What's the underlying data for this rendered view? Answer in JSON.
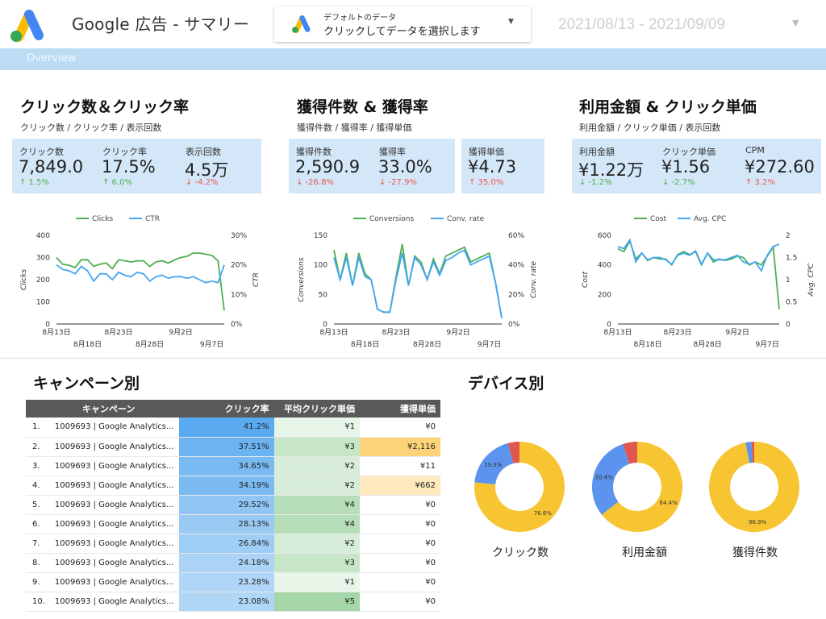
{
  "header": {
    "title": "Google 広告 - サマリー",
    "selector_line1": "デフォルトのデータ",
    "selector_line2": "クリックしてデータを選択します",
    "date_range": "2021/08/13 - 2021/09/09"
  },
  "tab": {
    "label": "Overview"
  },
  "colors": {
    "green": "#4caf50",
    "blue": "#42a5f5",
    "yellow": "#f7c531",
    "red": "#e0574f",
    "kpi_bg": "#d4e7f8"
  },
  "sections": [
    {
      "title": "クリック数＆クリック率",
      "subtitle": "クリック数 / クリック率 / 表示回数",
      "kpis": [
        {
          "label": "クリック数",
          "value": "7,849.0",
          "change": "↑ 1.5%"
        },
        {
          "label": "クリック率",
          "value": "17.5%",
          "change": "↑ 6.0%"
        },
        {
          "label": "表示回数",
          "value": "4.5万",
          "change": "↓ -4.2%"
        }
      ]
    },
    {
      "title": "獲得件数 & 獲得率",
      "subtitle": "獲得件数 / 獲得率 / 獲得単価",
      "kpis": [
        {
          "label": "獲得件数",
          "value": "2,590.9",
          "change": "↓ -26.8%"
        },
        {
          "label": "獲得率",
          "value": "33.0%",
          "change": "↓ -27.9%"
        },
        {
          "label": "獲得単価",
          "value": "¥4.73",
          "change": "↑ 35.0%"
        }
      ]
    },
    {
      "title": "利用金額 & クリック単価",
      "subtitle": "利用金額 / クリック単価 / 表示回数",
      "kpis": [
        {
          "label": "利用金額",
          "value": "¥1.22万",
          "change": "↓ -1.2%"
        },
        {
          "label": "クリック単価",
          "value": "¥1.56",
          "change": "↓ -2.7%"
        },
        {
          "label": "CPM",
          "value": "¥272.60",
          "change": "↑ 3.2%"
        }
      ]
    }
  ],
  "chart_data": [
    {
      "type": "line",
      "series": [
        {
          "name": "Clicks",
          "axis": "left",
          "values": [
            300,
            270,
            265,
            255,
            290,
            290,
            260,
            270,
            275,
            250,
            290,
            285,
            280,
            285,
            285,
            260,
            280,
            285,
            275,
            290,
            300,
            305,
            320,
            320,
            315,
            310,
            285,
            60
          ]
        },
        {
          "name": "CTR",
          "axis": "right",
          "values": [
            20,
            18.5,
            18,
            17,
            19.5,
            18,
            14.5,
            17,
            17,
            15,
            17.5,
            16.5,
            16,
            17.5,
            17,
            14.5,
            16,
            16.5,
            15.5,
            16,
            16,
            15.5,
            16,
            15,
            14,
            14.5,
            14,
            20
          ]
        }
      ],
      "x_tick_labels_row1": [
        "8月13日",
        "8月23日",
        "9月2日"
      ],
      "x_tick_labels_row2": [
        "8月18日",
        "8月28日",
        "9月7日"
      ],
      "ylabel_left": "Clicks",
      "ylabel_right": "CTR",
      "y_left_ticks": [
        "0",
        "100",
        "200",
        "300",
        "400"
      ],
      "y_right_ticks": [
        "0%",
        "10%",
        "20%",
        "30%"
      ],
      "ylim_left": [
        0,
        400
      ],
      "ylim_right": [
        0,
        30
      ]
    },
    {
      "type": "line",
      "series": [
        {
          "name": "Conversions",
          "axis": "left",
          "values": [
            125,
            75,
            120,
            65,
            120,
            85,
            75,
            25,
            20,
            20,
            80,
            135,
            65,
            115,
            105,
            75,
            110,
            85,
            115,
            120,
            125,
            130,
            105,
            110,
            115,
            120,
            70,
            10
          ]
        },
        {
          "name": "Conv. rate",
          "axis": "right",
          "values": [
            45,
            30,
            45,
            26,
            45,
            32,
            30,
            10,
            8,
            8,
            30,
            48,
            26,
            45,
            40,
            30,
            42,
            33,
            43,
            45,
            48,
            50,
            40,
            42,
            44,
            46,
            28,
            4
          ]
        }
      ],
      "x_tick_labels_row1": [
        "8月13日",
        "8月23日",
        "9月2日"
      ],
      "x_tick_labels_row2": [
        "8月18日",
        "8月28日",
        "9月7日"
      ],
      "ylabel_left": "Conversions",
      "ylabel_right": "Conv. rate",
      "y_left_ticks": [
        "0",
        "50",
        "100",
        "150"
      ],
      "y_right_ticks": [
        "0%",
        "20%",
        "40%",
        "60%"
      ],
      "ylim_left": [
        0,
        150
      ],
      "ylim_right": [
        0,
        60
      ]
    },
    {
      "type": "line",
      "series": [
        {
          "name": "Cost",
          "axis": "left",
          "values": [
            510,
            490,
            560,
            440,
            480,
            430,
            450,
            440,
            440,
            400,
            470,
            490,
            470,
            490,
            400,
            480,
            420,
            440,
            430,
            440,
            460,
            450,
            400,
            420,
            400,
            460,
            520,
            100
          ]
        },
        {
          "name": "Avg. CPC",
          "axis": "right",
          "values": [
            1.75,
            1.7,
            1.9,
            1.4,
            1.6,
            1.45,
            1.5,
            1.5,
            1.45,
            1.35,
            1.55,
            1.6,
            1.55,
            1.65,
            1.35,
            1.6,
            1.45,
            1.45,
            1.45,
            1.5,
            1.55,
            1.4,
            1.35,
            1.4,
            1.2,
            1.55,
            1.75,
            1.8
          ]
        }
      ],
      "x_tick_labels_row1": [
        "8月13日",
        "8月23日",
        "9月2日"
      ],
      "x_tick_labels_row2": [
        "8月18日",
        "8月28日",
        "9月7日"
      ],
      "ylabel_left": "Cost",
      "ylabel_right": "Avg. CPC",
      "y_left_ticks": [
        "0",
        "200",
        "400",
        "600"
      ],
      "y_right_ticks": [
        "0",
        "0.5",
        "1",
        "1.5",
        "2"
      ],
      "ylim_left": [
        0,
        600
      ],
      "ylim_right": [
        0,
        2
      ]
    },
    {
      "type": "table",
      "title": "キャンペーン別",
      "columns": [
        "キャンペーン",
        "クリック率",
        "平均クリック単価",
        "獲得単価"
      ],
      "rows": [
        {
          "idx": "1.",
          "name": "1009693 | Google Analytics...",
          "ctr": "41.2%",
          "cpc": "¥1",
          "cpa": "¥0"
        },
        {
          "idx": "2.",
          "name": "1009693 | Google Analytics...",
          "ctr": "37.51%",
          "cpc": "¥3",
          "cpa": "¥2,116"
        },
        {
          "idx": "3.",
          "name": "1009693 | Google Analytics...",
          "ctr": "34.65%",
          "cpc": "¥2",
          "cpa": "¥11"
        },
        {
          "idx": "4.",
          "name": "1009693 | Google Analytics...",
          "ctr": "34.19%",
          "cpc": "¥2",
          "cpa": "¥662"
        },
        {
          "idx": "5.",
          "name": "1009693 | Google Analytics...",
          "ctr": "29.52%",
          "cpc": "¥4",
          "cpa": "¥0"
        },
        {
          "idx": "6.",
          "name": "1009693 | Google Analytics...",
          "ctr": "28.13%",
          "cpc": "¥4",
          "cpa": "¥0"
        },
        {
          "idx": "7.",
          "name": "1009693 | Google Analytics...",
          "ctr": "26.84%",
          "cpc": "¥2",
          "cpa": "¥0"
        },
        {
          "idx": "8.",
          "name": "1009693 | Google Analytics...",
          "ctr": "24.18%",
          "cpc": "¥3",
          "cpa": "¥0"
        },
        {
          "idx": "9.",
          "name": "1009693 | Google Analytics...",
          "ctr": "23.28%",
          "cpc": "¥1",
          "cpa": "¥0"
        },
        {
          "idx": "10.",
          "name": "1009693 | Google Analytics...",
          "ctr": "23.08%",
          "cpc": "¥5",
          "cpa": "¥0"
        }
      ]
    },
    {
      "type": "pie",
      "title": "デバイス別",
      "pies": [
        {
          "label": "クリック数",
          "slices": [
            {
              "value": 76.6,
              "text": "76.6%",
              "color": "#f7c531"
            },
            {
              "value": 19.3,
              "text": "19.3%",
              "color": "#5b93ee"
            },
            {
              "value": 4.1,
              "text": "",
              "color": "#e0574f"
            }
          ]
        },
        {
          "label": "利用金額",
          "slices": [
            {
              "value": 64.4,
              "text": "64.4%",
              "color": "#f7c531"
            },
            {
              "value": 30.4,
              "text": "30.4%",
              "color": "#5b93ee"
            },
            {
              "value": 5.2,
              "text": "",
              "color": "#e0574f"
            }
          ]
        },
        {
          "label": "獲得件数",
          "slices": [
            {
              "value": 96.9,
              "text": "96.9%",
              "color": "#f7c531"
            },
            {
              "value": 2.1,
              "text": "",
              "color": "#5b93ee"
            },
            {
              "value": 1.0,
              "text": "",
              "color": "#e0574f"
            }
          ]
        }
      ]
    }
  ]
}
